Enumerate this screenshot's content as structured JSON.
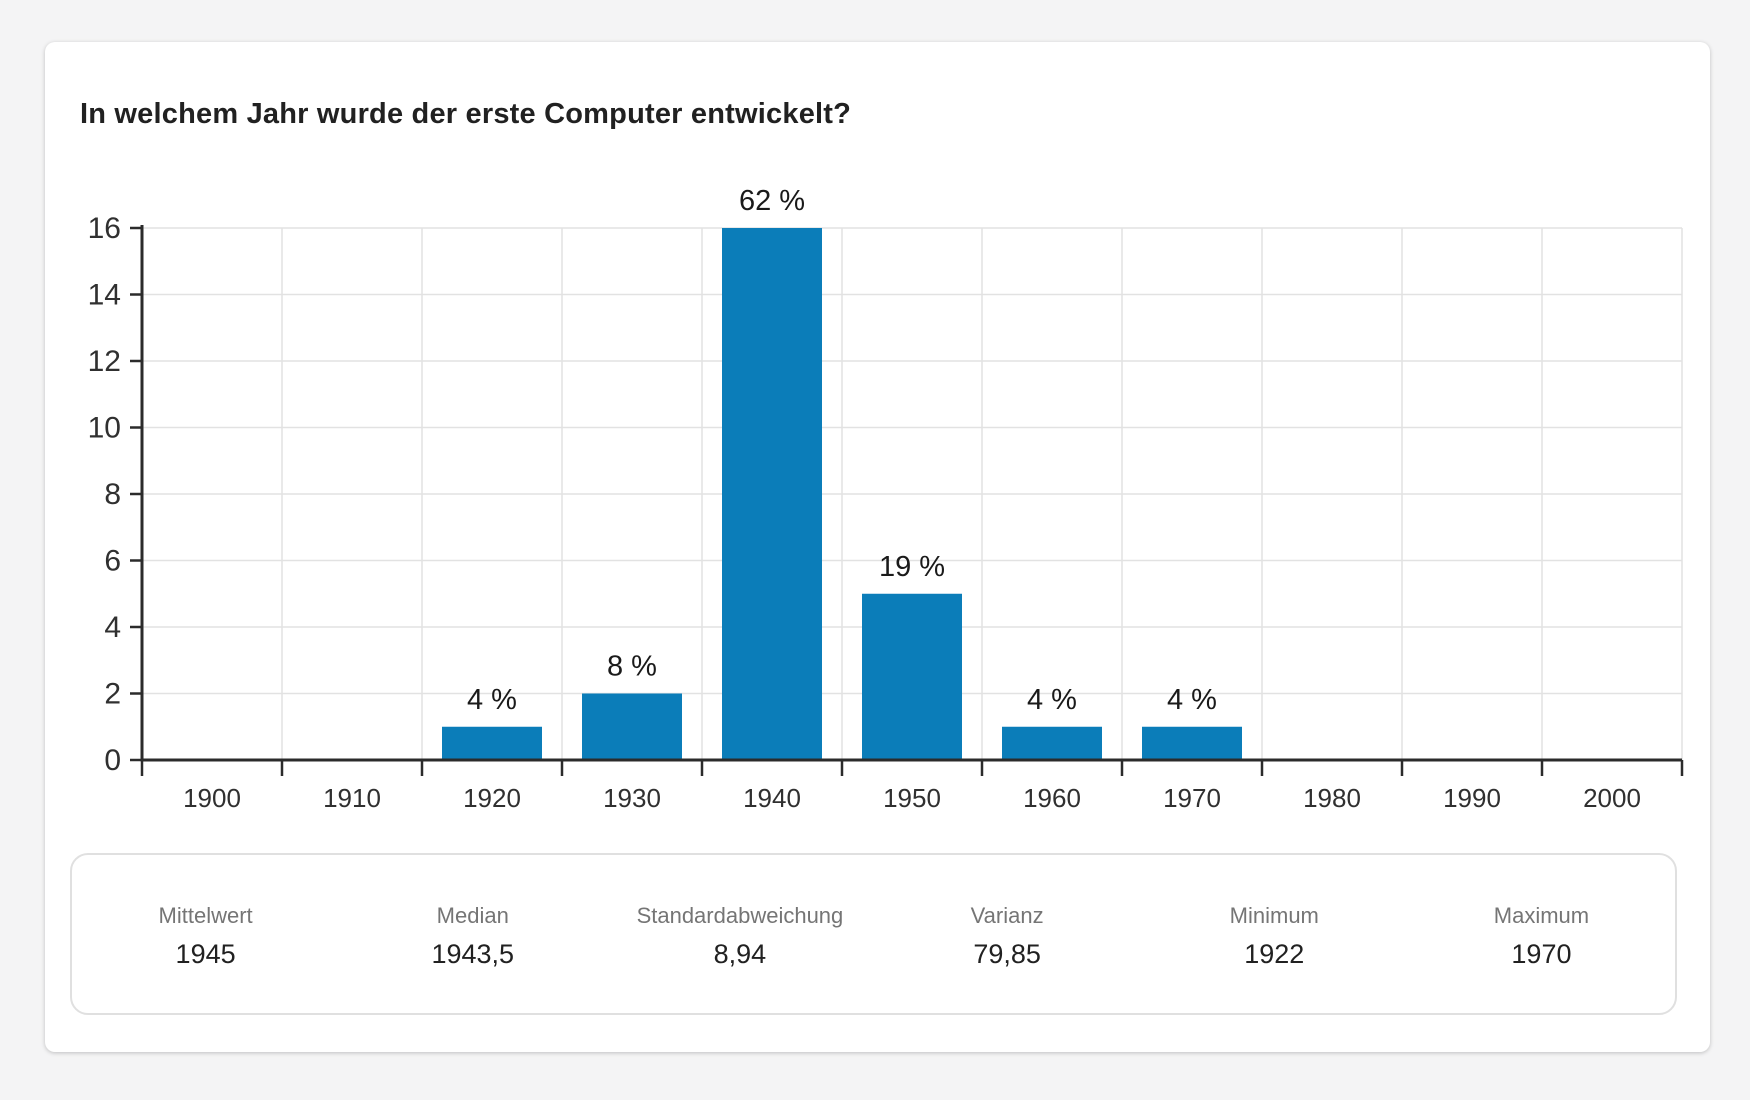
{
  "header": {
    "title": "In welchem Jahr wurde der erste Computer entwickelt?"
  },
  "chart_data": {
    "type": "bar",
    "title": "In welchem Jahr wurde der erste Computer entwickelt?",
    "categories": [
      "1900",
      "1910",
      "1920",
      "1930",
      "1940",
      "1950",
      "1960",
      "1970",
      "1980",
      "1990",
      "2000"
    ],
    "values": [
      0,
      0,
      1,
      2,
      16,
      5,
      1,
      1,
      0,
      0,
      0
    ],
    "bar_labels": [
      "",
      "",
      "4 %",
      "8 %",
      "62 %",
      "19 %",
      "4 %",
      "4 %",
      "",
      "",
      ""
    ],
    "percentages": [
      0,
      0,
      4,
      8,
      62,
      19,
      4,
      4,
      0,
      0,
      0
    ],
    "xlabel": "",
    "ylabel": "",
    "ylim": [
      0,
      16
    ],
    "ytick_step": 2,
    "grid": true,
    "legend": "none",
    "bar_color": "#0b7db9",
    "axis_color": "#2b2b2b",
    "grid_color": "#e2e2e2",
    "tick_label_color": "#303030",
    "value_label_color": "#1a1a1a"
  },
  "stats": {
    "items": [
      {
        "label": "Mittelwert",
        "value": "1945"
      },
      {
        "label": "Median",
        "value": "1943,5"
      },
      {
        "label": "Standardabweichung",
        "value": "8,94"
      },
      {
        "label": "Varianz",
        "value": "79,85"
      },
      {
        "label": "Minimum",
        "value": "1922"
      },
      {
        "label": "Maximum",
        "value": "1970"
      }
    ]
  }
}
